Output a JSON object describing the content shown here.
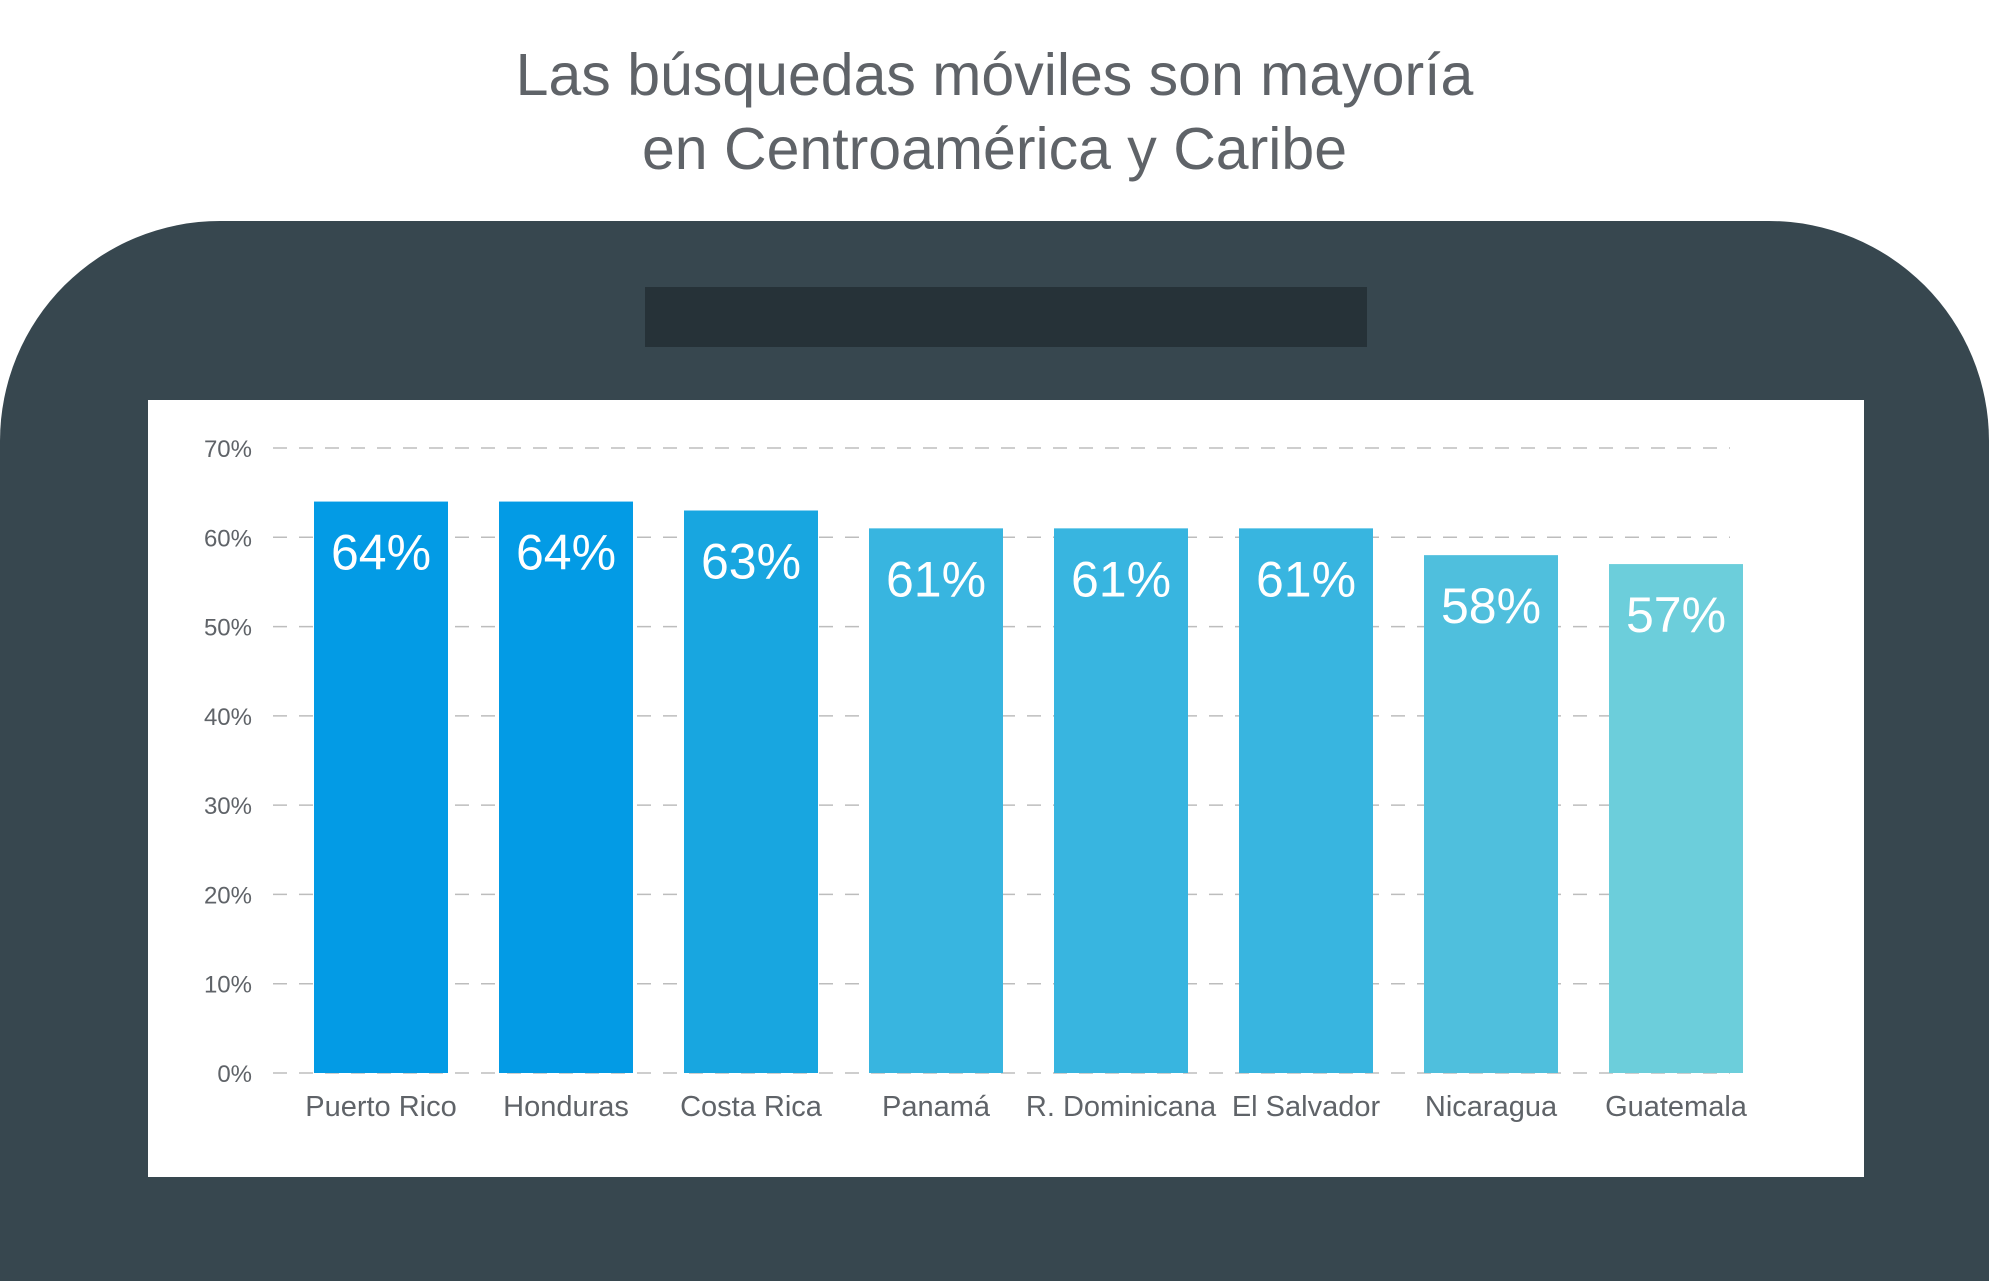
{
  "header": {
    "title_line1": "Las búsquedas móviles son mayoría",
    "title_line2": "en Centroamérica y Caribe"
  },
  "colors": {
    "phone_body": "#37474f",
    "speaker": "#263238",
    "screen": "#ffffff",
    "text": "#5f6368",
    "grid": "#bdbdbd"
  },
  "chart_data": {
    "type": "bar",
    "title": "Las búsquedas móviles son mayoría en Centroamérica y Caribe",
    "xlabel": "",
    "ylabel": "",
    "categories": [
      "Puerto Rico",
      "Honduras",
      "Costa Rica",
      "Panamá",
      "R. Dominicana",
      "El Salvador",
      "Nicaragua",
      "Guatemala"
    ],
    "values": [
      64,
      64,
      63,
      61,
      61,
      61,
      58,
      57
    ],
    "value_labels": [
      "64%",
      "64%",
      "63%",
      "61%",
      "61%",
      "61%",
      "58%",
      "57%"
    ],
    "bar_colors": [
      "#039be5",
      "#039be5",
      "#18a6e0",
      "#38b5e0",
      "#38b5e0",
      "#38b5e0",
      "#4fbfdd",
      "#6ccedb"
    ],
    "y_ticks": [
      0,
      10,
      20,
      30,
      40,
      50,
      60,
      70
    ],
    "y_tick_labels": [
      "0%",
      "10%",
      "20%",
      "30%",
      "40%",
      "50%",
      "60%",
      "70%"
    ],
    "ylim": [
      0,
      70
    ],
    "grid": true,
    "grid_style": "dashed",
    "legend": "none"
  }
}
